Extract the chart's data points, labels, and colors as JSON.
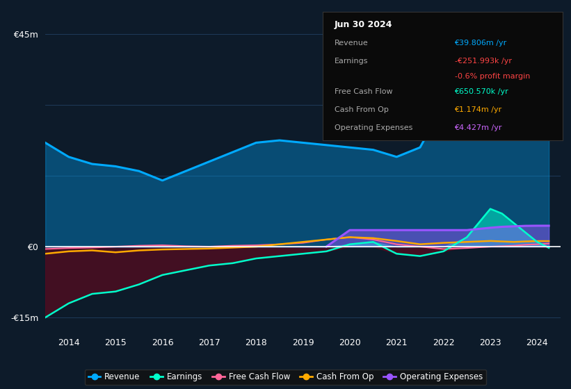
{
  "background_color": "#0d1b2a",
  "plot_bg_color": "#0d1b2a",
  "title_box": {
    "date": "Jun 30 2024",
    "rows": [
      {
        "label": "Revenue",
        "value": "€39.806m /yr",
        "value_color": "#00aaff"
      },
      {
        "label": "Earnings",
        "value": "-€251.993k /yr",
        "value_color": "#ff4444"
      },
      {
        "label": "",
        "value": "-0.6% profit margin",
        "value_color": "#ff4444"
      },
      {
        "label": "Free Cash Flow",
        "value": "€650.570k /yr",
        "value_color": "#00ffcc"
      },
      {
        "label": "Cash From Op",
        "value": "€1.174m /yr",
        "value_color": "#ffaa00"
      },
      {
        "label": "Operating Expenses",
        "value": "€4.427m /yr",
        "value_color": "#cc66ff"
      }
    ]
  },
  "years": [
    2013.5,
    2014,
    2014.5,
    2015,
    2015.5,
    2016,
    2016.5,
    2017,
    2017.5,
    2018,
    2018.5,
    2019,
    2019.5,
    2020,
    2020.5,
    2021,
    2021.5,
    2022,
    2022.5,
    2023,
    2023.25,
    2023.5,
    2023.75,
    2024,
    2024.25
  ],
  "revenue": [
    22,
    19,
    17.5,
    17,
    16,
    14,
    16,
    18,
    20,
    22,
    22.5,
    22,
    21.5,
    21,
    20.5,
    19,
    21,
    30,
    38,
    43,
    45,
    43,
    40,
    39,
    39.8
  ],
  "earnings": [
    -15,
    -12,
    -10,
    -9.5,
    -8,
    -6,
    -5,
    -4,
    -3.5,
    -2.5,
    -2,
    -1.5,
    -1,
    0.5,
    1,
    -1.5,
    -2,
    -1,
    2,
    8,
    7,
    5,
    3,
    1,
    -0.252
  ],
  "free_cash_flow": [
    -0.5,
    -0.3,
    -0.2,
    0,
    0.2,
    0.3,
    0.1,
    0,
    0.2,
    0.3,
    0.5,
    0.8,
    1.5,
    2,
    1.5,
    0.5,
    0,
    -0.5,
    -0.3,
    0,
    0.1,
    0.2,
    0.4,
    0.5,
    0.65
  ],
  "cash_from_op": [
    -1.5,
    -1,
    -0.8,
    -1.2,
    -0.8,
    -0.6,
    -0.5,
    -0.4,
    -0.2,
    0,
    0.5,
    1,
    1.5,
    2,
    1.8,
    1.2,
    0.5,
    0.8,
    1.0,
    1.2,
    1.1,
    1.0,
    1.1,
    1.174,
    1.174
  ],
  "op_expenses": [
    0,
    0,
    0,
    0,
    0,
    0,
    0,
    0,
    0,
    0,
    0,
    0,
    0,
    3.5,
    3.5,
    3.5,
    3.5,
    3.5,
    3.5,
    4.0,
    4.2,
    4.3,
    4.4,
    4.427,
    4.427
  ],
  "revenue_color": "#00aaff",
  "earnings_color": "#00ffcc",
  "free_cash_flow_color": "#ff6699",
  "cash_from_op_color": "#ffaa00",
  "op_expenses_color": "#9955ff",
  "grid_color": "#1e3a5a",
  "zero_line_color": "#ffffff",
  "yticks_labels": [
    "€45m",
    "€0",
    "-€15m"
  ],
  "yticks_values": [
    45,
    0,
    -15
  ],
  "xlim": [
    2013.5,
    2024.5
  ],
  "ylim": [
    -18,
    50
  ]
}
